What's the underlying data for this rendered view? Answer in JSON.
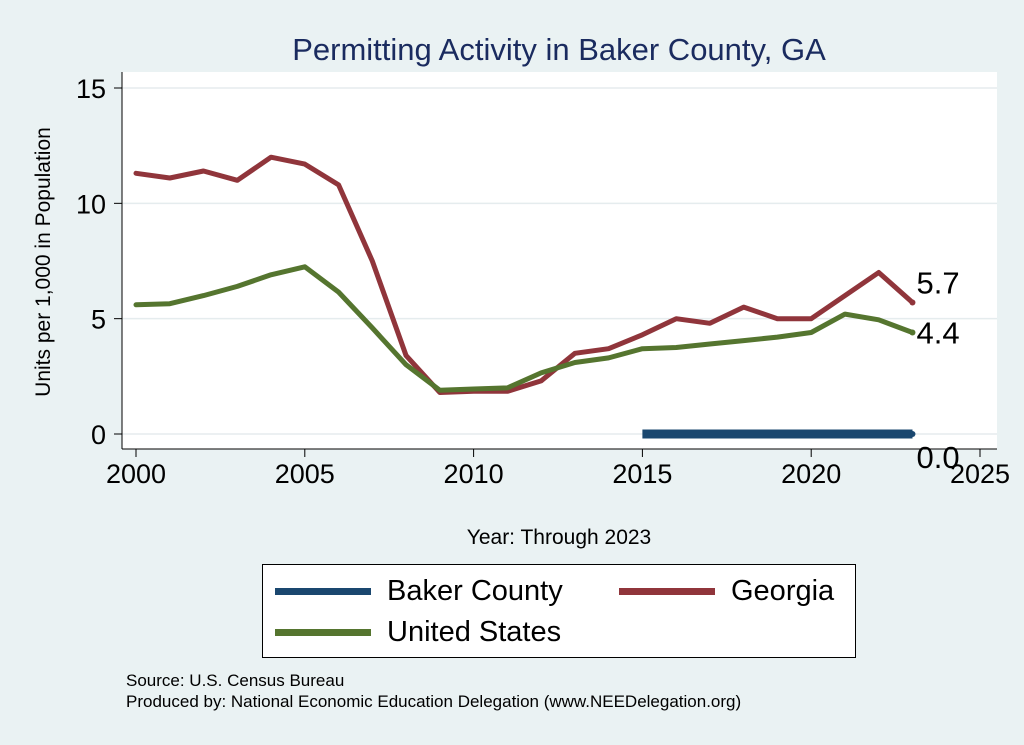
{
  "chart_data": {
    "type": "line",
    "title": "Permitting Activity in Baker County, GA",
    "xlabel": "Year: Through 2023",
    "ylabel": "Units per 1,000 in Population",
    "xlim": [
      2000,
      2025
    ],
    "ylim": [
      0,
      15
    ],
    "x_ticks": [
      "2000",
      "2005",
      "2010",
      "2015",
      "2020",
      "2025"
    ],
    "y_ticks": [
      "0",
      "5",
      "10",
      "15"
    ],
    "grid": true,
    "series": [
      {
        "name": "Baker County",
        "color": "#1a476f",
        "x": [
          2015,
          2016,
          2017,
          2018,
          2019,
          2020,
          2021,
          2022,
          2023
        ],
        "values": [
          0,
          0,
          0,
          0,
          0,
          0,
          0,
          0,
          0
        ],
        "end_label": "0.0"
      },
      {
        "name": "Georgia",
        "color": "#90353b",
        "x": [
          2000,
          2001,
          2002,
          2003,
          2004,
          2005,
          2006,
          2007,
          2008,
          2009,
          2010,
          2011,
          2012,
          2013,
          2014,
          2015,
          2016,
          2017,
          2018,
          2019,
          2020,
          2021,
          2022,
          2023
        ],
        "values": [
          11.3,
          11.1,
          11.4,
          11.0,
          12.0,
          11.7,
          10.8,
          7.5,
          3.4,
          1.8,
          1.85,
          1.85,
          2.3,
          3.5,
          3.7,
          4.3,
          5.0,
          4.8,
          5.5,
          5.0,
          5.0,
          6.0,
          7.0,
          5.7
        ],
        "end_label": "5.7"
      },
      {
        "name": "United States",
        "color": "#55752f",
        "x": [
          2000,
          2001,
          2002,
          2003,
          2004,
          2005,
          2006,
          2007,
          2008,
          2009,
          2010,
          2011,
          2012,
          2013,
          2014,
          2015,
          2016,
          2017,
          2018,
          2019,
          2020,
          2021,
          2022,
          2023
        ],
        "values": [
          5.6,
          5.65,
          6.0,
          6.4,
          6.9,
          7.25,
          6.15,
          4.6,
          3.0,
          1.9,
          1.95,
          2.0,
          2.65,
          3.1,
          3.3,
          3.7,
          3.75,
          3.9,
          4.05,
          4.2,
          4.4,
          5.2,
          4.95,
          4.4
        ],
        "end_label": "4.4"
      }
    ],
    "legend": {
      "placement": "bottom",
      "order": [
        "Baker County",
        "Georgia",
        "United States"
      ]
    }
  },
  "footer": {
    "source": "Source: U.S. Census Bureau",
    "producer": "Produced by: National Economic Education Delegation (www.NEEDelegation.org)"
  }
}
